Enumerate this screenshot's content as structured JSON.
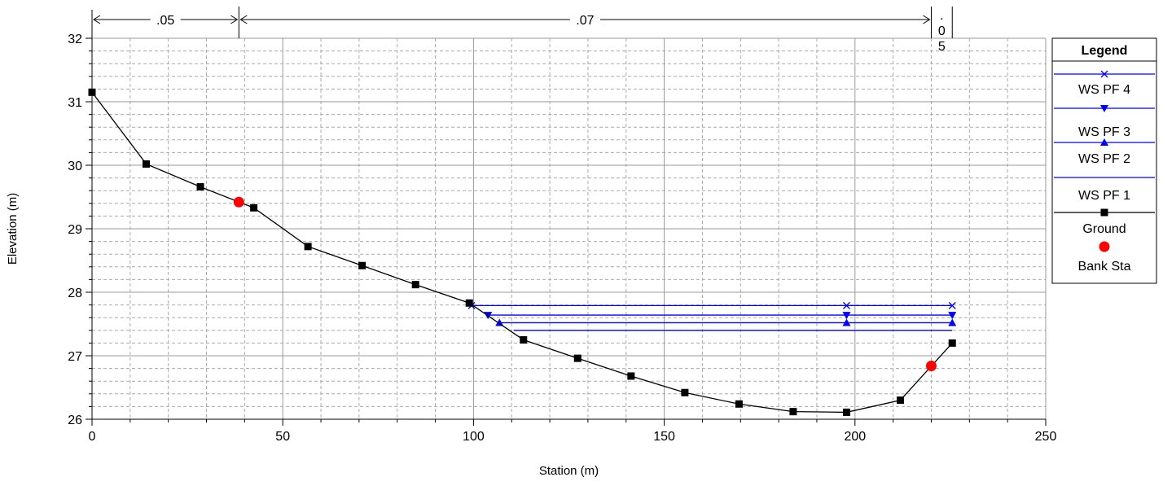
{
  "chart_data": {
    "type": "line",
    "xlabel": "Station (m)",
    "ylabel": "Elevation (m)",
    "xlim": [
      0,
      250
    ],
    "ylim": [
      26,
      32
    ],
    "x_ticks": [
      "0",
      "50",
      "100",
      "150",
      "200",
      "250"
    ],
    "y_ticks": [
      "26",
      "27",
      "28",
      "29",
      "30",
      "31",
      "32"
    ],
    "grid": true,
    "legend_position": "right",
    "legend": {
      "title": "Legend",
      "entries": [
        "WS PF 4",
        "WS PF 3",
        "WS PF 2",
        "WS PF 1",
        "Ground",
        "Bank Sta"
      ]
    },
    "manning_n": [
      {
        "label": ".05",
        "x_start": 0,
        "x_end": 38.5
      },
      {
        "label": ".07",
        "x_start": 38.5,
        "x_end": 220
      },
      {
        "label": ".05",
        "x_start": 220,
        "x_end": 225.5
      }
    ],
    "series": [
      {
        "name": "Ground",
        "color": "#000000",
        "marker": "square",
        "x": [
          0,
          14.2,
          28.4,
          42.4,
          56.6,
          70.8,
          84.8,
          98.9,
          113.1,
          127.3,
          141.3,
          155.4,
          169.6,
          183.8,
          197.8,
          211.9,
          225.5
        ],
        "y": [
          31.15,
          30.02,
          29.66,
          29.33,
          28.72,
          28.42,
          28.12,
          27.83,
          27.25,
          26.96,
          26.68,
          26.42,
          26.24,
          26.12,
          26.11,
          26.3,
          27.2
        ]
      },
      {
        "name": "Bank Sta",
        "color": "#ff0000",
        "marker": "circle",
        "x": [
          38.5,
          220
        ],
        "y": [
          29.42,
          26.84
        ]
      },
      {
        "name": "WS PF 4",
        "color": "#0000ff",
        "marker": "x",
        "x": [
          99.5,
          197.8,
          225.5
        ],
        "y": [
          27.79,
          27.79,
          27.79
        ]
      },
      {
        "name": "WS PF 3",
        "color": "#0000ff",
        "marker": "triangle-down",
        "x": [
          103.8,
          197.8,
          225.5
        ],
        "y": [
          27.64,
          27.64,
          27.64
        ]
      },
      {
        "name": "WS PF 2",
        "color": "#0000ff",
        "marker": "triangle-up",
        "x": [
          106.8,
          197.8,
          225.5
        ],
        "y": [
          27.52,
          27.52,
          27.52
        ]
      },
      {
        "name": "WS PF 1",
        "color": "#0000ff",
        "marker": "none",
        "x": [
          110.5,
          225.5
        ],
        "y": [
          27.4,
          27.4
        ]
      }
    ]
  }
}
